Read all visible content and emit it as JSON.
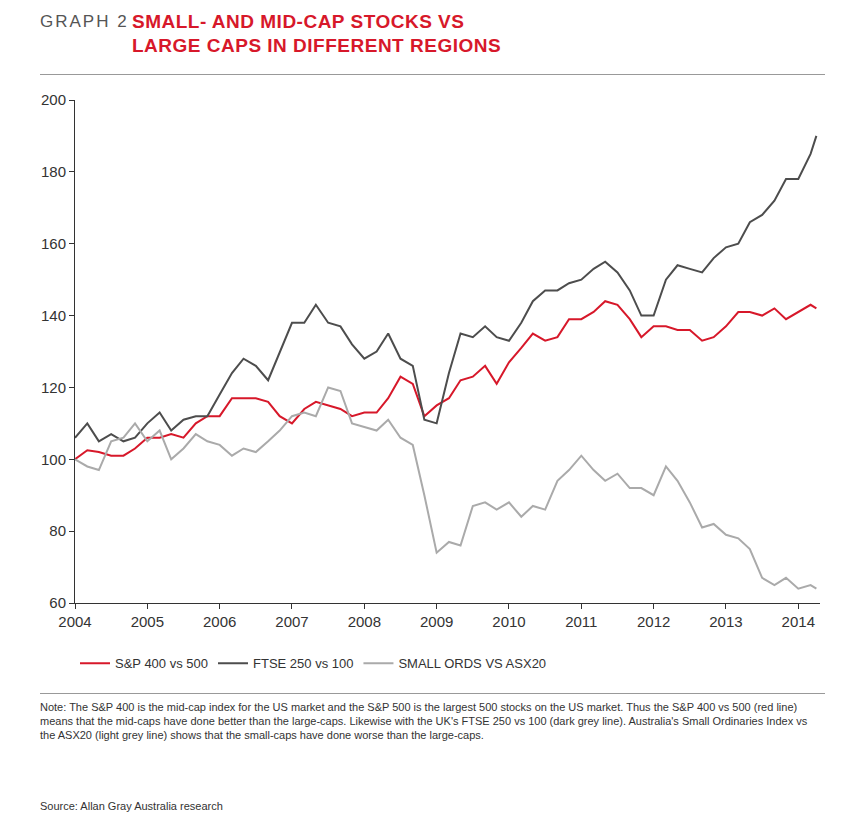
{
  "chart_data": {
    "type": "line",
    "title": [
      "SMALL- AND MID-CAP STOCKS VS",
      "LARGE CAPS IN DIFFERENT REGIONS"
    ],
    "annotations": [
      "GRAPH 2",
      "Note: The S&P 400 is the mid-cap index for the US market and the S&P 500 is the largest 500 stocks on the US market. Thus the S&P 400 vs 500 (red line) means that the mid-caps have done better than the large-caps. Likewise with the UK's FTSE 250 vs 100 (dark grey line). Australia's Small Ordinaries Index vs the ASX20 (light grey line) shows that the small-caps have done worse than the large-caps.",
      "Source: Allan Gray Australia research"
    ],
    "x": [
      2004,
      2004.17,
      2004.33,
      2004.5,
      2004.67,
      2004.83,
      2005,
      2005.17,
      2005.33,
      2005.5,
      2005.67,
      2005.83,
      2006,
      2006.17,
      2006.33,
      2006.5,
      2006.67,
      2006.83,
      2007,
      2007.17,
      2007.33,
      2007.5,
      2007.67,
      2007.83,
      2008,
      2008.17,
      2008.33,
      2008.5,
      2008.67,
      2008.83,
      2009,
      2009.17,
      2009.33,
      2009.5,
      2009.67,
      2009.83,
      2010,
      2010.17,
      2010.33,
      2010.5,
      2010.67,
      2010.83,
      2011,
      2011.17,
      2011.33,
      2011.5,
      2011.67,
      2011.83,
      2012,
      2012.17,
      2012.33,
      2012.5,
      2012.67,
      2012.83,
      2013,
      2013.17,
      2013.33,
      2013.5,
      2013.67,
      2013.83,
      2014,
      2014.17,
      2014.25
    ],
    "series": [
      {
        "name": "S&P 400 vs 500",
        "color": "#d7182a",
        "values": [
          100,
          102.5,
          102,
          101,
          101,
          103,
          106,
          106,
          107,
          106,
          110,
          112,
          112,
          117,
          117,
          117,
          116,
          112,
          110,
          114,
          116,
          115,
          114,
          112,
          113,
          113,
          117,
          123,
          121,
          112,
          115,
          117,
          122,
          123,
          126,
          121,
          127,
          131,
          135,
          133,
          134,
          139,
          139,
          141,
          144,
          143,
          139,
          134,
          137,
          137,
          136,
          136,
          133,
          134,
          137,
          141,
          141,
          140,
          142,
          139,
          141,
          143,
          142
        ]
      },
      {
        "name": "FTSE 250 vs 100",
        "color": "#4d4d4d",
        "values": [
          106,
          110,
          105,
          107,
          105,
          106,
          110,
          113,
          108,
          111,
          112,
          112,
          118,
          124,
          128,
          126,
          122,
          130,
          138,
          138,
          143,
          138,
          137,
          132,
          128,
          130,
          135,
          128,
          126,
          111,
          110,
          124,
          135,
          134,
          137,
          134,
          133,
          138,
          144,
          147,
          147,
          149,
          150,
          153,
          155,
          152,
          147,
          140,
          140,
          150,
          154,
          153,
          152,
          156,
          159,
          160,
          166,
          168,
          172,
          178,
          178,
          185,
          190
        ]
      },
      {
        "name": "SMALL ORDS VS ASX20",
        "color": "#aaaaaa",
        "values": [
          100,
          98,
          97,
          105,
          106,
          110,
          105,
          108,
          100,
          103,
          107,
          105,
          104,
          101,
          103,
          102,
          105,
          108,
          112,
          113,
          112,
          120,
          119,
          110,
          109,
          108,
          111,
          106,
          104,
          90,
          74,
          77,
          76,
          87,
          88,
          86,
          88,
          84,
          87,
          86,
          94,
          97,
          101,
          97,
          94,
          96,
          92,
          92,
          90,
          98,
          94,
          88,
          81,
          82,
          79,
          78,
          75,
          67,
          65,
          67,
          64,
          65,
          64
        ]
      }
    ],
    "xlim": [
      2004,
      2014.3
    ],
    "xticks": [
      2004,
      2005,
      2006,
      2007,
      2008,
      2009,
      2010,
      2011,
      2012,
      2013,
      2014
    ],
    "ylim": [
      60,
      200
    ],
    "yticks": [
      60,
      80,
      100,
      120,
      140,
      160,
      180,
      200
    ],
    "grid": false,
    "legend": "bottom left"
  }
}
